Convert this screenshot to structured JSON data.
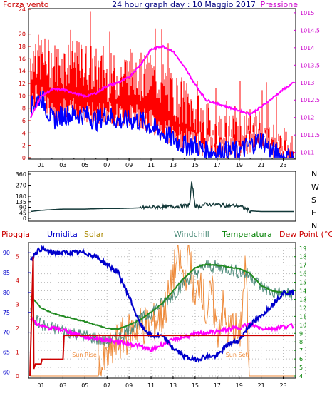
{
  "header": {
    "title": "24 hour graph day : 10 Maggio 2017",
    "left_label": "Forza vento",
    "right_label": "Pressione"
  },
  "colors": {
    "wind_gust": "#ff0000",
    "wind_avg": "#0000ff",
    "pressure": "#ff00ff",
    "wind_dir": "#123838",
    "rain": "#cc0000",
    "humidity": "#0000cc",
    "solar": "#ee8a3a",
    "windchill": "#4a8a78",
    "temperature": "#228b22",
    "dewpoint": "#ff00ff",
    "axis_left_top": "#cc0000",
    "axis_right_top": "#cc00cc",
    "axis_bottom_left": "#cc0000",
    "axis_bottom_humid": "#0000cc",
    "axis_bottom_right": "#008000"
  },
  "chart_data": [
    {
      "id": "wind_pressure",
      "type": "line",
      "title": "24 hour graph day : 10 Maggio 2017",
      "y_left_ticks": [
        "0",
        "2",
        "4",
        "6",
        "8",
        "10",
        "12",
        "14",
        "16",
        "18",
        "20",
        "24"
      ],
      "y_left_range": [
        0,
        24
      ],
      "y_right_ticks": [
        "1011",
        "1011.5",
        "1012",
        "1012.5",
        "1013",
        "1013.5",
        "1014",
        "1014.5",
        "1015"
      ],
      "y_right_range": [
        1010.85,
        1015.1
      ],
      "x_ticks": [
        "01",
        "03",
        "05",
        "07",
        "09",
        "11",
        "13",
        "15",
        "17",
        "19",
        "21",
        "23"
      ],
      "x_range": [
        0,
        24
      ],
      "series": [
        {
          "name": "Forza vento",
          "kind": "gust",
          "x": [
            0,
            1,
            2,
            3,
            4,
            5,
            6,
            7,
            8,
            9,
            10,
            11,
            12,
            13,
            14,
            15,
            16,
            17,
            18,
            19,
            20,
            21,
            22,
            23,
            24
          ],
          "values": [
            16,
            16,
            15,
            15,
            15,
            15,
            14,
            13,
            13,
            14,
            13,
            13,
            12,
            10,
            9,
            7,
            5,
            4,
            3,
            3,
            4,
            5,
            2,
            1,
            0
          ]
        },
        {
          "name": "",
          "kind": "avg",
          "x": [
            0,
            1,
            2,
            3,
            4,
            5,
            6,
            7,
            8,
            9,
            10,
            11,
            12,
            13,
            14,
            15,
            16,
            17,
            18,
            19,
            20,
            21,
            22,
            23,
            24
          ],
          "values": [
            8,
            10,
            6,
            7,
            7,
            7,
            6,
            7,
            6,
            6,
            6,
            5,
            4,
            3,
            2,
            2,
            1,
            1,
            1,
            1,
            2,
            3,
            1,
            0,
            0
          ]
        },
        {
          "name": "Pressione",
          "kind": "pressure",
          "x": [
            0,
            1,
            2,
            3,
            4,
            5,
            6,
            7,
            8,
            9,
            10,
            11,
            12,
            13,
            14,
            15,
            16,
            17,
            18,
            19,
            20,
            21,
            22,
            23,
            24
          ],
          "values": [
            1011.95,
            1012.6,
            1012.8,
            1012.8,
            1012.7,
            1012.6,
            1012.7,
            1012.9,
            1013.0,
            1013.15,
            1013.5,
            1013.95,
            1014.05,
            1013.9,
            1013.45,
            1012.95,
            1012.5,
            1012.4,
            1012.3,
            1012.2,
            1012.1,
            1012.3,
            1012.55,
            1012.8,
            1013.0
          ]
        }
      ]
    },
    {
      "id": "wind_direction",
      "type": "line",
      "y_ticks": [
        "0",
        "45",
        "90",
        "135",
        "180",
        "270",
        "360"
      ],
      "y_range": [
        0,
        360
      ],
      "compass_labels": [
        "N",
        "W",
        "S",
        "E",
        "N"
      ],
      "series": [
        {
          "name": "",
          "x": [
            0,
            1,
            2,
            3,
            4,
            5,
            6,
            7,
            8,
            9,
            10,
            11,
            12,
            13,
            14,
            14.5,
            14.7,
            15,
            15.3,
            16,
            17,
            18,
            19,
            20,
            21,
            22,
            23,
            24
          ],
          "values": [
            55,
            65,
            70,
            75,
            75,
            75,
            78,
            80,
            80,
            82,
            85,
            90,
            92,
            95,
            100,
            110,
            300,
            105,
            95,
            115,
            110,
            105,
            100,
            60,
            55,
            55,
            55,
            55
          ]
        }
      ]
    },
    {
      "id": "multi",
      "type": "line",
      "labels": [
        "Pioggia",
        "Umidita",
        "Solar",
        "Windchill",
        "Temperatura",
        "Dew Point (°C)"
      ],
      "y_rain_ticks": [
        "0",
        "1",
        "2",
        "3",
        "4",
        "5"
      ],
      "y_humid_ticks": [
        "60",
        "65",
        "70",
        "75",
        "80",
        "85",
        "90"
      ],
      "y_temp_ticks": [
        "4",
        "5",
        "6",
        "7",
        "8",
        "9",
        "10",
        "11",
        "12",
        "13",
        "14",
        "15",
        "16",
        "17",
        "18",
        "19"
      ],
      "x_ticks": [
        "01",
        "03",
        "05",
        "07",
        "09",
        "11",
        "13",
        "15",
        "17",
        "19",
        "21",
        "23"
      ],
      "sun_labels": [
        "Sun Rise",
        "Sun Set"
      ],
      "sun_times": [
        6.2,
        19.9
      ],
      "series": [
        {
          "name": "Pioggia",
          "axis": "rain",
          "x": [
            0,
            0.3,
            0.35,
            0.5,
            1,
            1.1,
            3,
            3.1,
            5,
            6,
            10,
            15,
            20,
            24
          ],
          "values": [
            0,
            5.0,
            0.3,
            0.5,
            0.5,
            0.7,
            0.7,
            1.7,
            1.7,
            1.7,
            1.7,
            1.7,
            1.7,
            1.7
          ]
        },
        {
          "name": "Umidita",
          "axis": "humid",
          "x": [
            0,
            0.5,
            1,
            2,
            3,
            4,
            5,
            6,
            7,
            8,
            9,
            10,
            11,
            12,
            13,
            14,
            15,
            16,
            17,
            18,
            19,
            20,
            21,
            22,
            23,
            24
          ],
          "values": [
            88,
            90,
            91,
            90,
            90,
            90,
            90,
            89,
            87,
            85,
            79,
            72,
            69,
            69,
            66,
            64,
            63,
            64,
            64,
            67,
            68,
            72,
            74,
            77,
            80,
            80
          ]
        },
        {
          "name": "Solar",
          "axis": "temp",
          "x": [
            0,
            6.2,
            6.5,
            7,
            8,
            9,
            10,
            11,
            12,
            12.8,
            13,
            13.5,
            14,
            14.5,
            15,
            15.5,
            16,
            16.5,
            17,
            17.5,
            18,
            18.5,
            19,
            19.6,
            19.9,
            20,
            24
          ],
          "values": [
            4,
            4,
            5,
            6,
            8,
            9,
            10,
            10,
            11,
            14,
            16,
            18,
            15,
            19,
            12,
            16,
            11,
            14,
            9,
            12,
            9,
            10,
            8,
            17,
            4,
            4,
            4
          ]
        },
        {
          "name": "Windchill",
          "axis": "temp",
          "x": [
            0,
            1,
            2,
            3,
            4,
            5,
            6,
            7,
            8,
            9,
            10,
            11,
            12,
            13,
            14,
            15,
            16,
            17,
            18,
            19,
            20,
            21,
            22,
            23,
            24
          ],
          "values": [
            11.5,
            10,
            9.6,
            9.4,
            9,
            8.7,
            8.4,
            8,
            8.5,
            9.5,
            10.5,
            11.5,
            12.5,
            13.5,
            15,
            16,
            17,
            16.8,
            16.6,
            16.2,
            15.8,
            14.5,
            13.8,
            13.6,
            13.6
          ]
        },
        {
          "name": "Temperatura",
          "axis": "temp",
          "x": [
            0,
            1,
            2,
            3,
            4,
            5,
            6,
            7,
            8,
            9,
            10,
            11,
            12,
            13,
            14,
            15,
            16,
            17,
            18,
            19,
            20,
            21,
            22,
            23,
            24
          ],
          "values": [
            13.5,
            12,
            11.4,
            11,
            10.7,
            10.4,
            10,
            9.6,
            9.5,
            10,
            10.6,
            11.5,
            12.5,
            14,
            15.5,
            16.7,
            17.1,
            17,
            16.8,
            16.6,
            16,
            14.6,
            14,
            13.8,
            13.8
          ]
        },
        {
          "name": "Dew Point (°C)",
          "axis": "temp",
          "x": [
            0,
            1,
            2,
            3,
            4,
            5,
            6,
            7,
            8,
            9,
            10,
            11,
            12,
            13,
            14,
            15,
            16,
            17,
            18,
            19,
            20,
            21,
            22,
            23,
            24
          ],
          "values": [
            10.8,
            9.8,
            9.6,
            9.4,
            9,
            8.6,
            8.4,
            8.2,
            8.0,
            7.8,
            7.5,
            7,
            7.7,
            8.2,
            8.6,
            8.9,
            9.1,
            9.2,
            9.5,
            9.7,
            10.1,
            9.6,
            9.6,
            9.8,
            9.9
          ]
        }
      ]
    }
  ]
}
